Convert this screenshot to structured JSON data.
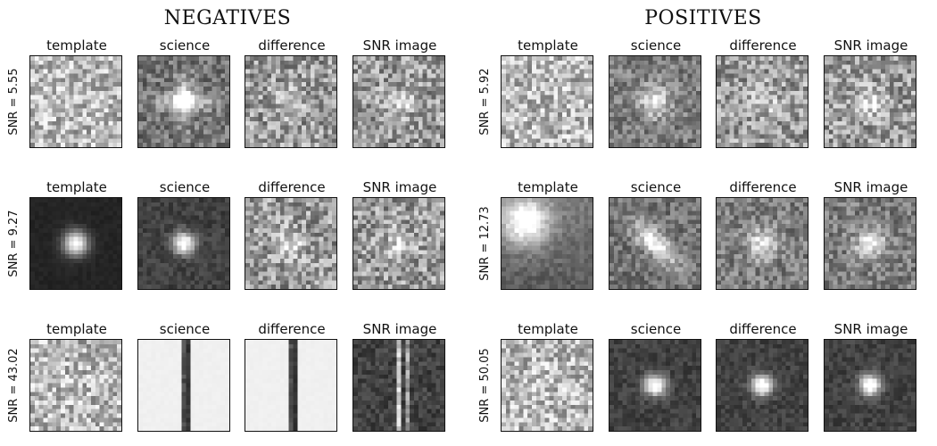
{
  "groups": [
    {
      "title": "NEGATIVES",
      "rows": [
        {
          "snr_label": "SNR = 5.55",
          "panels": [
            {
              "label": "template",
              "pattern": "noise-light"
            },
            {
              "label": "science",
              "pattern": "cross-blob"
            },
            {
              "label": "difference",
              "pattern": "noise-faint-blob"
            },
            {
              "label": "SNR image",
              "pattern": "noise-faint-blob"
            }
          ]
        },
        {
          "snr_label": "SNR = 9.27",
          "panels": [
            {
              "label": "template",
              "pattern": "dark-bright-star"
            },
            {
              "label": "science",
              "pattern": "dark-bright-star-small"
            },
            {
              "label": "difference",
              "pattern": "noise-faint-blob"
            },
            {
              "label": "SNR image",
              "pattern": "noise-faint-blob"
            }
          ]
        },
        {
          "snr_label": "SNR = 43.02",
          "panels": [
            {
              "label": "template",
              "pattern": "noise-light"
            },
            {
              "label": "science",
              "pattern": "blank-vertical-line"
            },
            {
              "label": "difference",
              "pattern": "blank-vertical-line"
            },
            {
              "label": "SNR image",
              "pattern": "dark-vertical-lines"
            }
          ]
        }
      ]
    },
    {
      "title": "POSITIVES",
      "rows": [
        {
          "snr_label": "SNR = 5.92",
          "panels": [
            {
              "label": "template",
              "pattern": "noise-light"
            },
            {
              "label": "science",
              "pattern": "medium-blob"
            },
            {
              "label": "difference",
              "pattern": "noise-faint-blob"
            },
            {
              "label": "SNR image",
              "pattern": "noise-faint-blob"
            }
          ]
        },
        {
          "snr_label": "SNR = 12.73",
          "panels": [
            {
              "label": "template",
              "pattern": "smooth-galaxy"
            },
            {
              "label": "science",
              "pattern": "diagonal-blob"
            },
            {
              "label": "difference",
              "pattern": "medium-blob"
            },
            {
              "label": "SNR image",
              "pattern": "medium-blob"
            }
          ]
        },
        {
          "snr_label": "SNR = 50.05",
          "panels": [
            {
              "label": "template",
              "pattern": "noise-light"
            },
            {
              "label": "science",
              "pattern": "dark-bright-star-small"
            },
            {
              "label": "difference",
              "pattern": "dark-bright-star-small"
            },
            {
              "label": "SNR image",
              "pattern": "dark-bright-star-small"
            }
          ]
        }
      ]
    }
  ]
}
